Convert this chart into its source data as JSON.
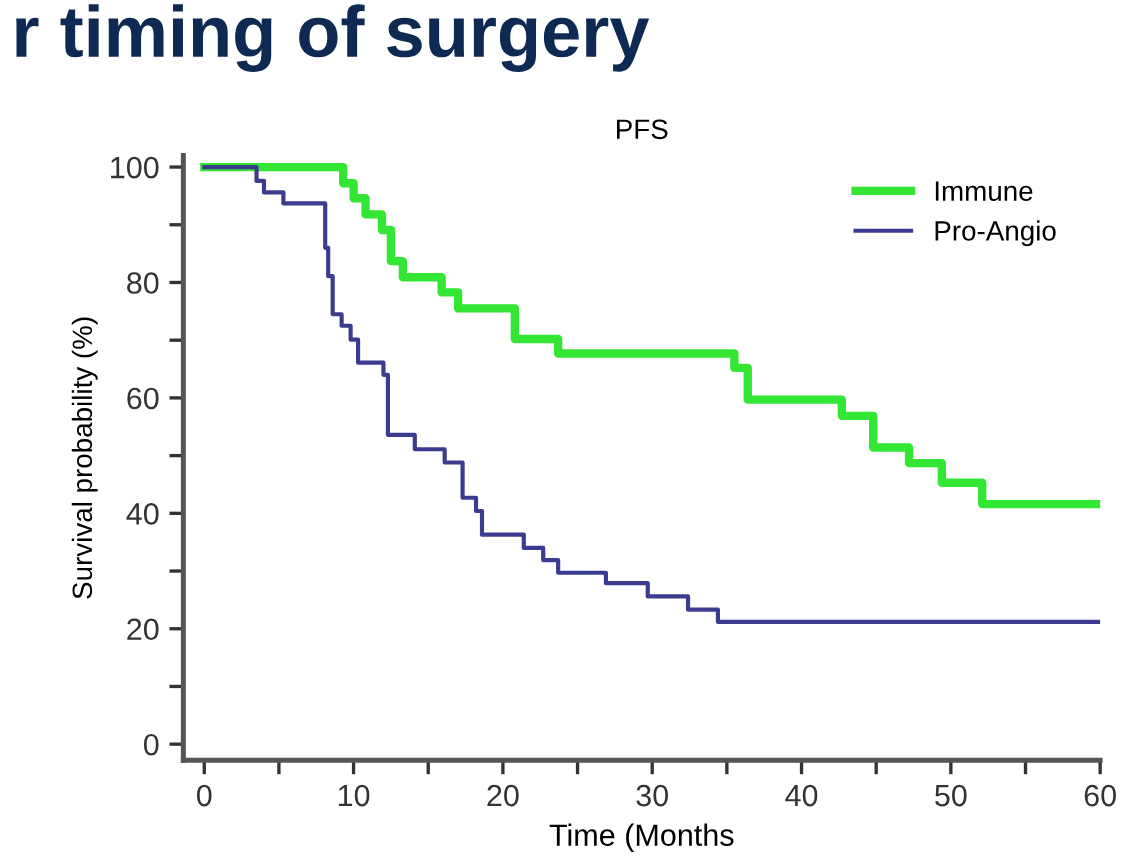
{
  "chart_data": {
    "type": "step",
    "title": "PFS",
    "xlabel": "Time (Months",
    "ylabel": "Survival probability (%)",
    "annotations": [
      "r timing of surgery"
    ],
    "series": [
      {
        "name": "Immune",
        "color": "#33e633",
        "x": [
          0,
          9.3,
          10.0,
          10.8,
          11.9,
          12.5,
          13.3,
          15.9,
          17.0,
          20.8,
          23.7,
          35.5,
          36.4,
          42.7,
          44.8,
          47.2,
          49.4,
          52.1,
          60
        ],
        "values": [
          100,
          97.2,
          94.6,
          91.8,
          89.1,
          83.7,
          80.9,
          78.3,
          75.5,
          70.2,
          67.7,
          65.2,
          59.7,
          56.9,
          51.4,
          48.7,
          45.3,
          41.6,
          41.6
        ]
      },
      {
        "name": "Pro-Angio",
        "color": "#3b3b8f",
        "x": [
          0,
          3.5,
          4.0,
          5.3,
          8.1,
          8.3,
          8.6,
          9.2,
          9.8,
          10.3,
          12.0,
          12.3,
          14.1,
          16.1,
          17.3,
          18.2,
          18.6,
          21.4,
          22.7,
          23.7,
          26.9,
          29.7,
          32.4,
          34.4,
          60
        ],
        "values": [
          100,
          97.6,
          95.6,
          93.7,
          86,
          81.1,
          74.5,
          72.5,
          70.1,
          66.1,
          64.0,
          53.6,
          51.1,
          48.8,
          42.7,
          40.4,
          36.3,
          34.0,
          31.9,
          29.7,
          27.9,
          25.6,
          23.3,
          21.2,
          21.2
        ]
      }
    ],
    "xlim": [
      -1.4,
      60
    ],
    "ylim": [
      -2.8,
      102
    ],
    "xticks": [
      0,
      {
        "value": 5,
        "label": null
      },
      10,
      {
        "value": 15,
        "label": null
      },
      20,
      {
        "value": 25,
        "label": null
      },
      30,
      {
        "value": 35,
        "label": null
      },
      40,
      {
        "value": 45,
        "label": null
      },
      50,
      {
        "value": 55,
        "label": null
      },
      60
    ],
    "yticks": [
      0,
      {
        "value": 10,
        "label": null
      },
      20,
      {
        "value": 30,
        "label": null
      },
      40,
      {
        "value": 50,
        "label": null
      },
      60,
      {
        "value": 70,
        "label": null
      },
      80,
      {
        "value": 90,
        "label": null
      },
      100
    ],
    "legend": "top right",
    "grid": false
  }
}
